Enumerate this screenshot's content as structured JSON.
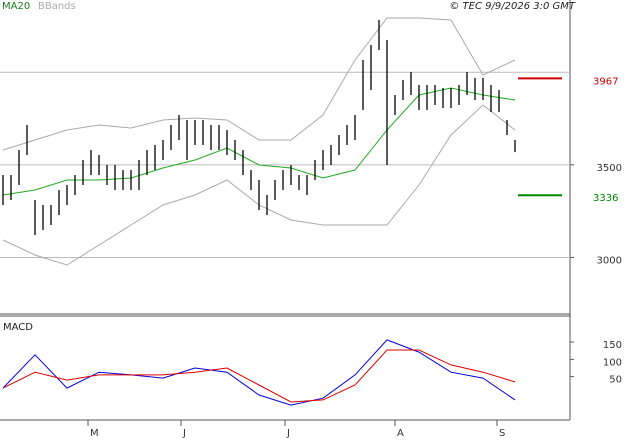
{
  "chart_data": [
    {
      "type": "ohlc",
      "legend": [
        {
          "name": "MA20",
          "color": "#1a7a1a"
        },
        {
          "name": "BBands",
          "color": "#aaaaaa"
        }
      ],
      "copyright": "© TEC 9/9/2026 3:0 GMT",
      "x": [
        0,
        2,
        4,
        6,
        8,
        10,
        12,
        14,
        16,
        18,
        20,
        22,
        24,
        26,
        28,
        30,
        32,
        34,
        36,
        38,
        40,
        42,
        44,
        46,
        48,
        50,
        52,
        54,
        56,
        58,
        60,
        62,
        64,
        66,
        68,
        70,
        72,
        74,
        76,
        78,
        80,
        82,
        84,
        86,
        88,
        90,
        92,
        94,
        96,
        98,
        100,
        102,
        104,
        106,
        108,
        110,
        112,
        114,
        116,
        118,
        120,
        122,
        124,
        126,
        128
      ],
      "high": [
        3445,
        3445,
        3580,
        3715,
        3310,
        3283,
        3283,
        3364,
        3391,
        3445,
        3526,
        3580,
        3553,
        3499,
        3499,
        3472,
        3472,
        3526,
        3580,
        3607,
        3634,
        3715,
        3769,
        3742,
        3742,
        3742,
        3715,
        3715,
        3688,
        3634,
        3580,
        3472,
        3418,
        3337,
        3418,
        3472,
        3499,
        3445,
        3445,
        3526,
        3580,
        3607,
        3661,
        3715,
        3769,
        4066,
        4147,
        4282,
        4174,
        3877,
        3958,
        4001,
        3931,
        3931,
        3931,
        3915,
        3915,
        3931,
        4001,
        3969,
        3969,
        3931,
        3904,
        3742,
        3634
      ],
      "low": [
        3283,
        3310,
        3391,
        3553,
        3121,
        3148,
        3175,
        3229,
        3283,
        3337,
        3391,
        3445,
        3445,
        3391,
        3364,
        3364,
        3364,
        3364,
        3445,
        3472,
        3526,
        3580,
        3634,
        3526,
        3607,
        3607,
        3580,
        3580,
        3553,
        3526,
        3445,
        3364,
        3256,
        3229,
        3310,
        3364,
        3391,
        3364,
        3337,
        3418,
        3472,
        3499,
        3553,
        3607,
        3634,
        3796,
        3904,
        4120,
        3499,
        3769,
        3850,
        3877,
        3796,
        3796,
        3823,
        3807,
        3807,
        3823,
        3877,
        3850,
        3850,
        3785,
        3785,
        3661,
        3569
      ],
      "bar_color": "#000000",
      "series": [
        {
          "name": "MA20",
          "color": "#22aa22",
          "x": [
            0,
            8,
            16,
            24,
            32,
            40,
            48,
            56,
            64,
            72,
            80,
            88,
            96,
            104,
            112,
            120,
            128
          ],
          "values": [
            3337,
            3364,
            3418,
            3418,
            3429,
            3483,
            3526,
            3591,
            3499,
            3483,
            3429,
            3472,
            3688,
            3877,
            3915,
            3877,
            3850
          ]
        },
        {
          "name": "BBands",
          "color": "#aaaaaa",
          "x": [
            0,
            8,
            16,
            24,
            32,
            40,
            48,
            56,
            64,
            72,
            80,
            88,
            96,
            104,
            112,
            120,
            128
          ],
          "values": [
            3580,
            3634,
            3688,
            3715,
            3699,
            3742,
            3753,
            3742,
            3634,
            3634,
            3769,
            4066,
            4293,
            4293,
            4282,
            3985,
            4066
          ]
        },
        {
          "name": "BBands",
          "color": "#aaaaaa",
          "x": [
            0,
            8,
            16,
            24,
            32,
            40,
            48,
            56,
            64,
            72,
            80,
            88,
            96,
            104,
            112,
            120,
            128
          ],
          "values": [
            3094,
            3013,
            2959,
            3067,
            3175,
            3283,
            3337,
            3418,
            3283,
            3202,
            3175,
            3175,
            3175,
            3391,
            3661,
            3823,
            3688
          ]
        }
      ],
      "levels": [
        {
          "value": 3967,
          "color": "#cc0000"
        },
        {
          "value": 3336,
          "color": "#008800"
        }
      ],
      "xlim": [
        -0.75,
        141.75
      ],
      "ylim": [
        2700,
        4390
      ],
      "yticks": [
        3000,
        3500
      ],
      "extra_gridlines": [
        4000
      ],
      "grid": true
    },
    {
      "type": "line",
      "title": "MACD",
      "x": [
        0,
        8,
        16,
        24,
        32,
        40,
        48,
        56,
        64,
        72,
        80,
        88,
        96,
        104,
        112,
        120,
        128
      ],
      "series": [
        {
          "color": "#0000dd",
          "values": [
            17,
            113,
            17,
            63,
            55,
            46,
            75,
            63,
            -3,
            -32,
            -12,
            55,
            156,
            121,
            63,
            46,
            -17
          ]
        },
        {
          "color": "#dd0000",
          "values": [
            17,
            63,
            40,
            55,
            55,
            55,
            63,
            75,
            26,
            -23,
            -17,
            26,
            127,
            127,
            84,
            63,
            35
          ]
        }
      ],
      "xlim": [
        -0.75,
        141.75
      ],
      "ylim": [
        -75,
        225
      ],
      "yticks": [
        50,
        100,
        150
      ],
      "xticks": [
        {
          "value": 21.25,
          "label": "M"
        },
        {
          "value": 44.5,
          "label": "J"
        },
        {
          "value": 70.5,
          "label": "J"
        },
        {
          "value": 98,
          "label": "A"
        },
        {
          "value": 123.5,
          "label": "S"
        }
      ]
    }
  ]
}
